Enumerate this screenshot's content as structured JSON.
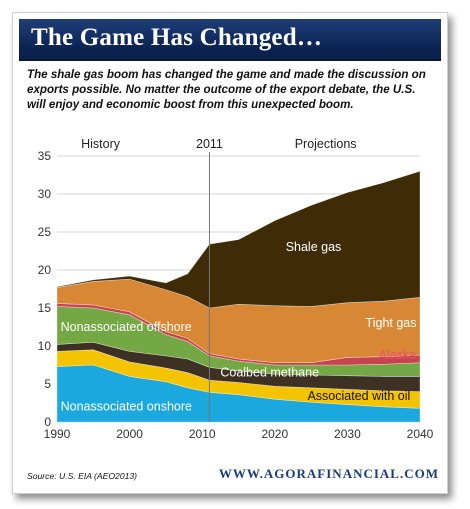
{
  "banner": {
    "title": "The Game Has Changed…"
  },
  "subtitle": "The shale gas boom has changed the game and made the discussion on exports possible. No matter the outcome of the export debate, the U.S. will enjoy and economic boost from this unexpected boom.",
  "footer": {
    "source": "Source: U.S. EIA (AEO2013)",
    "website": "WWW.AGORAFINANCIAL.COM"
  },
  "chart_data": {
    "type": "area",
    "stacked": true,
    "x": [
      1990,
      1995,
      2000,
      2005,
      2008,
      2011,
      2015,
      2020,
      2025,
      2030,
      2035,
      2040
    ],
    "xlim": [
      1990,
      2040
    ],
    "ylim": [
      0,
      35
    ],
    "x_ticks": [
      1990,
      2000,
      2010,
      2020,
      2030,
      2040
    ],
    "y_ticks": [
      0,
      5,
      10,
      15,
      20,
      25,
      30,
      35
    ],
    "grid": "horizontal",
    "divider_x": 2011,
    "annotations": {
      "history": "History",
      "year": "2011",
      "projections": "Projections"
    },
    "series": [
      {
        "name": "Nonassociated onshore",
        "color": "#1ba8df",
        "values": [
          7.3,
          7.5,
          6.0,
          5.3,
          4.5,
          3.9,
          3.6,
          3.0,
          2.6,
          2.3,
          2.0,
          1.8
        ]
      },
      {
        "name": "Associated with oil",
        "color": "#f5c400",
        "values": [
          2.0,
          2.0,
          1.9,
          1.8,
          2.0,
          1.6,
          1.6,
          1.7,
          1.9,
          2.0,
          2.1,
          2.2
        ]
      },
      {
        "name": "Coalbed methane",
        "color": "#3d3124",
        "values": [
          0.9,
          1.0,
          1.4,
          1.6,
          1.8,
          1.7,
          1.5,
          1.6,
          1.7,
          1.8,
          1.9,
          2.0
        ]
      },
      {
        "name": "Nonassociated offshore",
        "color": "#73a844",
        "values": [
          5.0,
          4.5,
          4.8,
          2.8,
          2.3,
          1.5,
          1.3,
          1.2,
          1.3,
          1.4,
          1.6,
          1.8
        ]
      },
      {
        "name": "Alaska",
        "color": "#c9434e",
        "values": [
          0.4,
          0.4,
          0.4,
          0.4,
          0.4,
          0.3,
          0.3,
          0.3,
          0.3,
          1.0,
          1.0,
          1.0
        ]
      },
      {
        "name": "Tight gas",
        "color": "#d88735",
        "values": [
          2.1,
          3.1,
          4.3,
          5.5,
          5.5,
          6.0,
          7.2,
          7.5,
          7.4,
          7.2,
          7.3,
          7.6
        ]
      },
      {
        "name": "Shale gas",
        "color": "#3f2c07",
        "values": [
          0.1,
          0.2,
          0.4,
          0.9,
          3.0,
          8.4,
          8.5,
          11.2,
          13.3,
          14.5,
          15.6,
          16.6
        ]
      }
    ],
    "series_labels": [
      {
        "name": "Nonassociated onshore",
        "x": 1990.5,
        "y": 1.5,
        "color": "#ffffff",
        "anchor": "start"
      },
      {
        "name": "Associated with oil",
        "x": 2024.5,
        "y": 2.9,
        "color": "#111111",
        "anchor": "start"
      },
      {
        "name": "Coalbed methane",
        "x": 2012.5,
        "y": 6.0,
        "color": "#ffffff",
        "anchor": "start"
      },
      {
        "name": "Nonassociated offshore",
        "x": 1990.5,
        "y": 12.0,
        "color": "#ffffff",
        "anchor": "start"
      },
      {
        "name": "Alaska",
        "x": 2034.3,
        "y": 8.3,
        "color": "#e9506a",
        "anchor": "start"
      },
      {
        "name": "Tight gas",
        "x": 2032.5,
        "y": 12.5,
        "color": "#ffffff",
        "anchor": "start"
      },
      {
        "name": "Shale gas",
        "x": 2021.5,
        "y": 22.5,
        "color": "#ffffff",
        "anchor": "start"
      }
    ]
  }
}
